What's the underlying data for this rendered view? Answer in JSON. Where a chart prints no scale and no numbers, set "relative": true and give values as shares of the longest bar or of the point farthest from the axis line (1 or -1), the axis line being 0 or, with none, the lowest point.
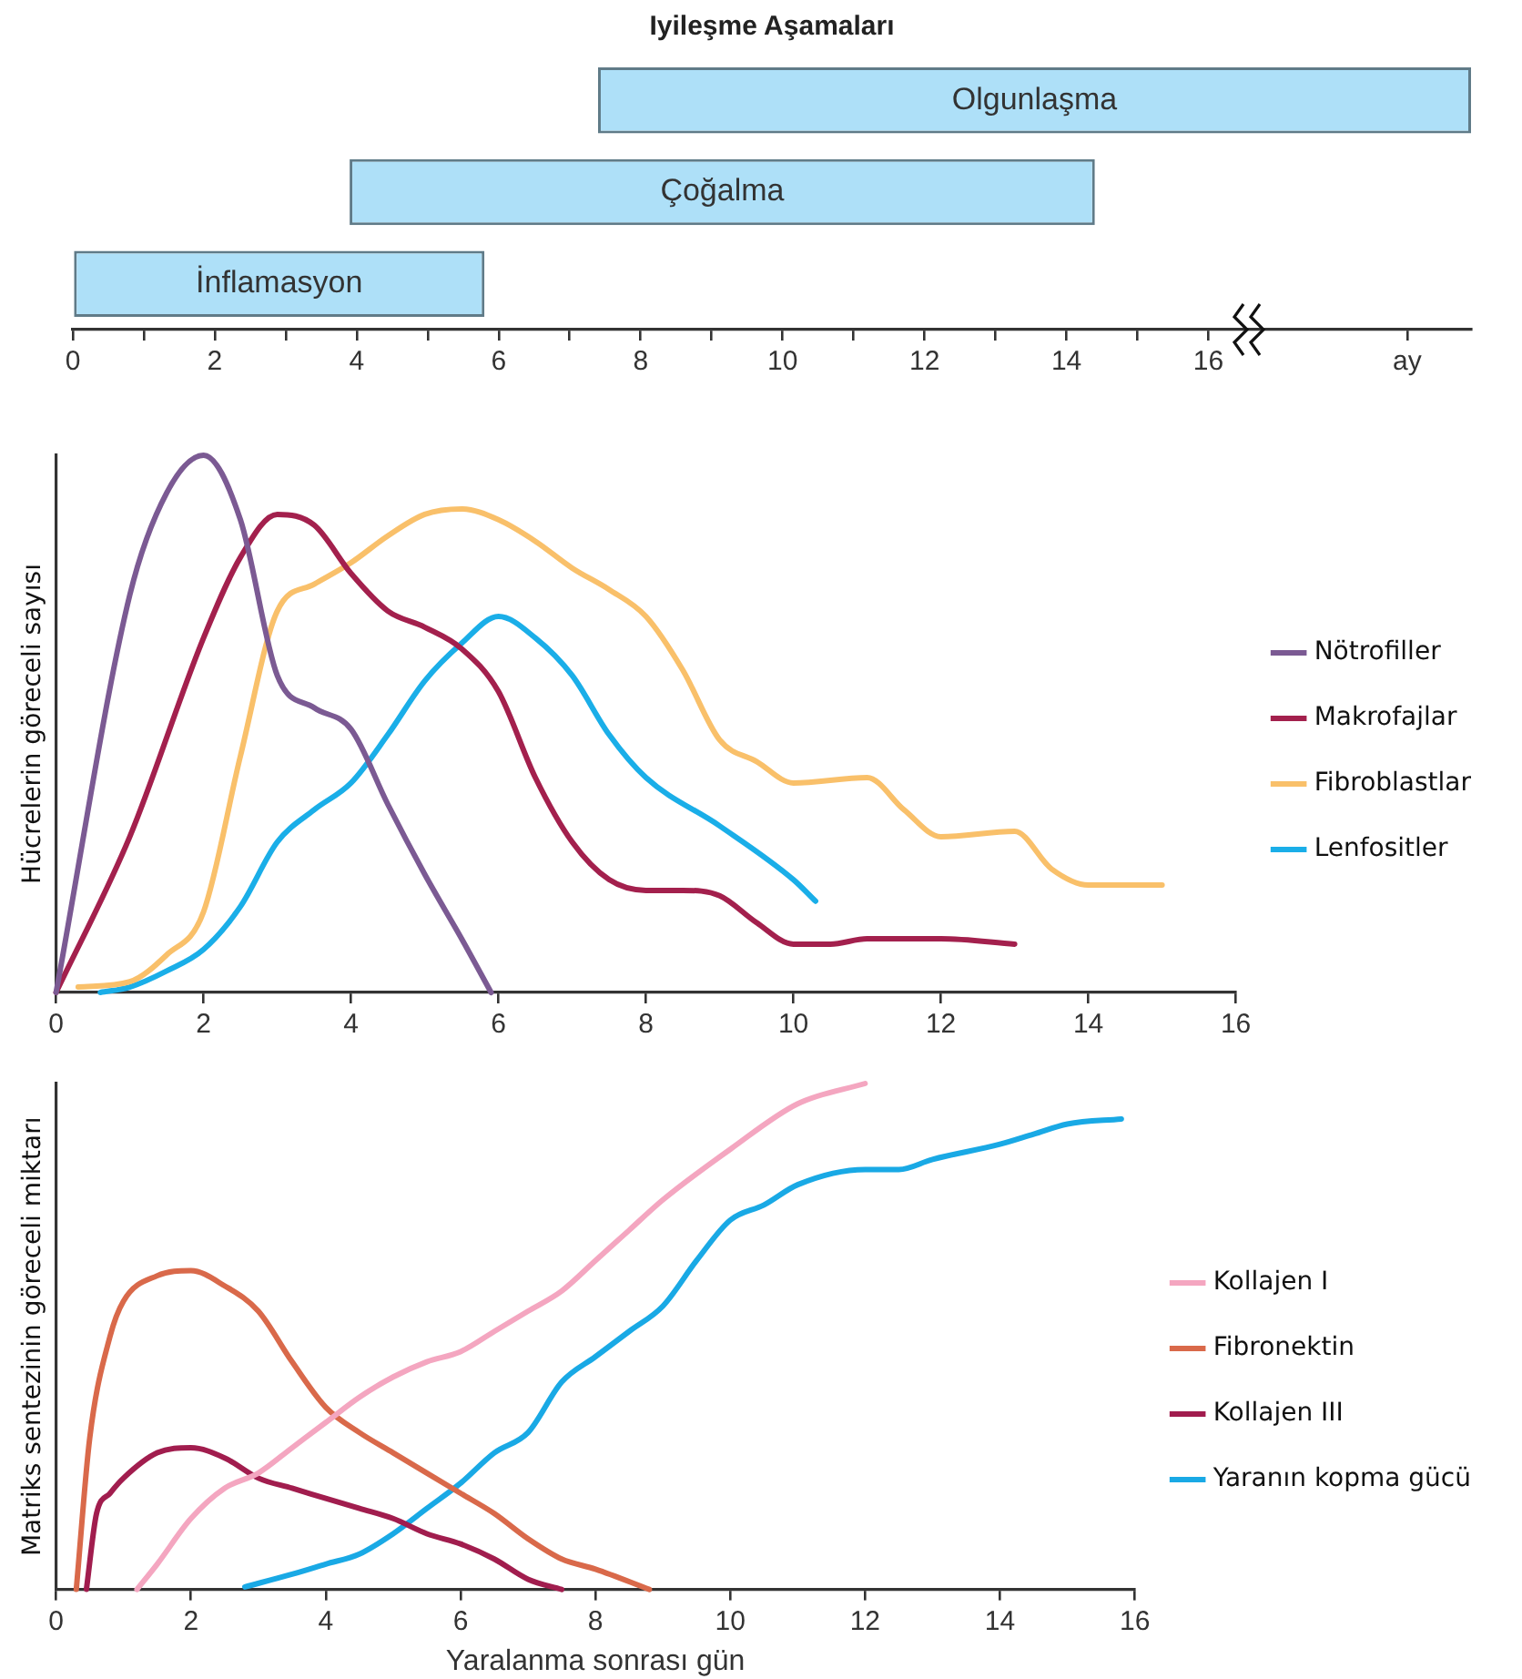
{
  "chart_data": [
    {
      "type": "bar",
      "title": "Iyileşme Aşamaları",
      "orientation": "horizontal",
      "categories": [
        "Olgunlaşma",
        "Çoğalma",
        "İnflamasyon"
      ],
      "base": [
        7.4,
        3.9,
        0
      ],
      "values": [
        12.3,
        10.5,
        5.8
      ],
      "color": "#aee0f8",
      "xlim": [
        0,
        19.7
      ],
      "xticks": [
        0,
        {
          "value": 1,
          "label": null
        },
        2,
        {
          "value": 3,
          "label": null
        },
        4,
        {
          "value": 5,
          "label": null
        },
        6,
        {
          "value": 7,
          "label": null
        },
        8,
        {
          "value": 9,
          "label": null
        },
        10,
        {
          "value": 11,
          "label": null
        },
        12,
        {
          "value": 13,
          "label": null
        },
        14,
        {
          "value": 15,
          "label": null
        },
        16,
        {
          "value": 18.8,
          "label": "ay"
        }
      ]
    },
    {
      "type": "line",
      "ylabel": "Hücrelerin göreceli sayısı",
      "relative": true,
      "legend": "right",
      "marker": "none",
      "xlim": [
        0,
        16
      ],
      "xticks": [
        0,
        2,
        4,
        6,
        8,
        10,
        12,
        14,
        16
      ],
      "series": [
        {
          "name": "Nötrofiller",
          "color": "#7b5a93",
          "x": [
            0,
            1,
            1.5,
            2,
            2.5,
            3,
            3.5,
            4,
            4.5,
            5,
            5.5,
            5.9
          ],
          "values": [
            0,
            0.74,
            0.93,
            1,
            0.88,
            0.59,
            0.53,
            0.49,
            0.35,
            0.22,
            0.1,
            0
          ]
        },
        {
          "name": "Makrofajlar",
          "color": "#a3204d",
          "x": [
            0,
            1,
            2,
            2.5,
            3,
            3.5,
            4,
            4.5,
            5,
            5.5,
            6,
            6.5,
            7,
            7.5,
            8,
            8.5,
            9,
            9.5,
            10,
            10.5,
            11,
            12,
            13
          ],
          "values": [
            0,
            0.29,
            0.66,
            0.81,
            0.89,
            0.87,
            0.78,
            0.71,
            0.68,
            0.64,
            0.56,
            0.4,
            0.28,
            0.21,
            0.19,
            0.19,
            0.18,
            0.13,
            0.09,
            0.09,
            0.1,
            0.1,
            0.09
          ]
        },
        {
          "name": "Fibroblastlar",
          "color": "#f9c06a",
          "x": [
            0.3,
            1,
            1.5,
            2,
            2.5,
            3,
            3.5,
            4,
            4.5,
            5,
            5.5,
            6,
            6.5,
            7,
            7.5,
            8,
            8.5,
            9,
            9.5,
            10,
            11,
            11.5,
            12,
            13,
            13.5,
            14,
            15
          ],
          "values": [
            0.01,
            0.02,
            0.07,
            0.15,
            0.44,
            0.71,
            0.76,
            0.8,
            0.85,
            0.89,
            0.9,
            0.88,
            0.84,
            0.79,
            0.75,
            0.7,
            0.6,
            0.47,
            0.43,
            0.39,
            0.4,
            0.34,
            0.29,
            0.3,
            0.23,
            0.2,
            0.2
          ]
        },
        {
          "name": "Lenfositler",
          "color": "#1aaee8",
          "x": [
            0.6,
            1,
            1.5,
            2,
            2.5,
            3,
            3.5,
            4,
            4.5,
            5,
            5.5,
            6,
            6.5,
            7,
            7.5,
            8,
            9,
            10,
            10.3
          ],
          "values": [
            0,
            0.01,
            0.04,
            0.08,
            0.16,
            0.28,
            0.34,
            0.39,
            0.48,
            0.58,
            0.65,
            0.7,
            0.66,
            0.59,
            0.48,
            0.4,
            0.31,
            0.21,
            0.17
          ]
        }
      ]
    },
    {
      "type": "line",
      "xlabel": "Yaralanma sonrası gün",
      "ylabel": "Matriks sentezinin göreceli miktarı",
      "relative": true,
      "legend": "right",
      "marker": "none",
      "xlim": [
        0,
        16
      ],
      "xticks": [
        0,
        2,
        4,
        6,
        8,
        10,
        12,
        14,
        16
      ],
      "series": [
        {
          "name": "Kollajen I",
          "color": "#f4a6c0",
          "x": [
            1.2,
            1.5,
            2,
            2.5,
            3,
            3.5,
            4,
            4.5,
            5,
            5.5,
            6,
            6.5,
            7,
            7.5,
            8,
            8.5,
            9,
            10,
            11,
            12
          ],
          "values": [
            0,
            0.05,
            0.14,
            0.2,
            0.23,
            0.28,
            0.33,
            0.38,
            0.42,
            0.45,
            0.47,
            0.51,
            0.55,
            0.59,
            0.65,
            0.71,
            0.77,
            0.87,
            0.96,
            1
          ]
        },
        {
          "name": "Fibronektin",
          "color": "#d9694a",
          "x": [
            0.3,
            0.5,
            0.8,
            1,
            1.5,
            2,
            2.5,
            3,
            3.5,
            4,
            4.5,
            5,
            5.5,
            6,
            6.5,
            7,
            7.5,
            8,
            8.8
          ],
          "values": [
            0,
            0.3,
            0.5,
            0.57,
            0.62,
            0.63,
            0.6,
            0.55,
            0.45,
            0.36,
            0.31,
            0.27,
            0.23,
            0.19,
            0.15,
            0.1,
            0.06,
            0.04,
            0
          ]
        },
        {
          "name": "Kollajen III",
          "color": "#a11d4e",
          "x": [
            0.45,
            0.6,
            0.8,
            1,
            1.5,
            2,
            2.5,
            3,
            3.5,
            4,
            4.5,
            5,
            5.5,
            6,
            6.5,
            7,
            7.5
          ],
          "values": [
            0,
            0.15,
            0.19,
            0.22,
            0.27,
            0.28,
            0.26,
            0.22,
            0.2,
            0.18,
            0.16,
            0.14,
            0.11,
            0.09,
            0.06,
            0.02,
            0
          ]
        },
        {
          "name": "Yaranın kopma gücü",
          "color": "#19a9e5",
          "x": [
            2.8,
            3.5,
            4,
            4.5,
            5,
            5.5,
            6,
            6.5,
            7,
            7.5,
            8,
            8.5,
            9,
            9.5,
            10,
            10.5,
            11,
            12,
            12.5,
            13,
            14,
            14.5,
            15,
            15.8
          ],
          "values": [
            0.005,
            0.03,
            0.05,
            0.07,
            0.11,
            0.16,
            0.21,
            0.27,
            0.31,
            0.41,
            0.46,
            0.51,
            0.56,
            0.65,
            0.73,
            0.76,
            0.8,
            0.83,
            0.83,
            0.85,
            0.88,
            0.9,
            0.92,
            0.93
          ]
        }
      ]
    }
  ]
}
